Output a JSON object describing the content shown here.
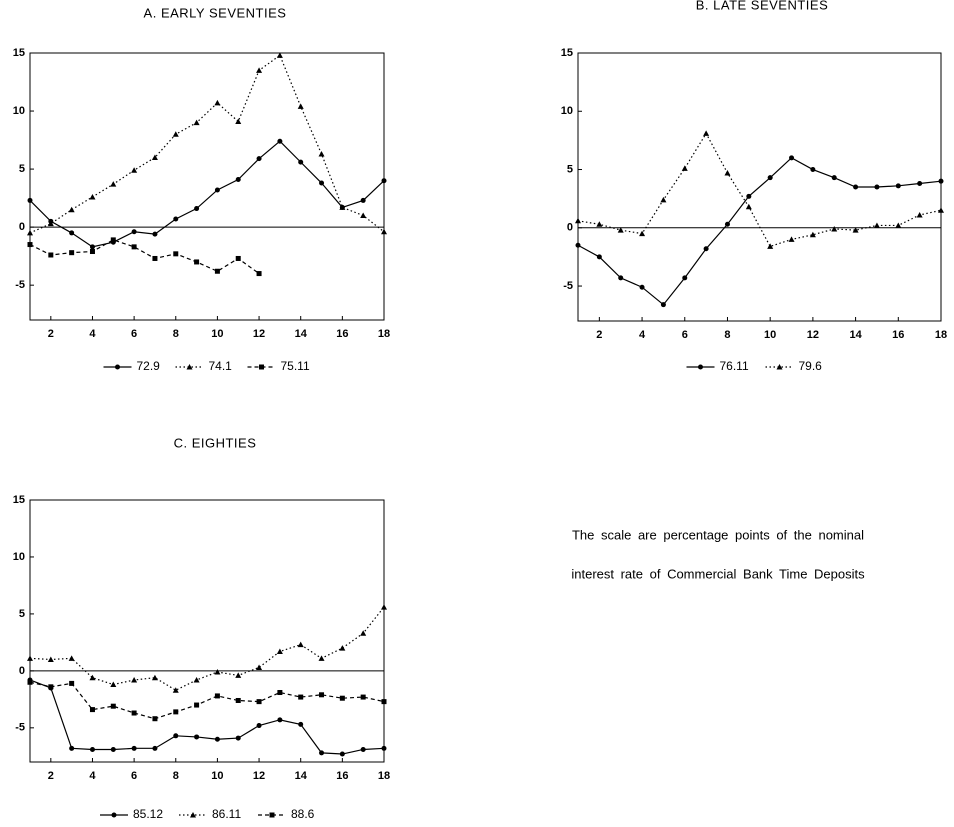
{
  "chart_data": [
    {
      "type": "line",
      "title": "A. EARLY SEVENTIES",
      "x": [
        1,
        2,
        3,
        4,
        5,
        6,
        7,
        8,
        9,
        10,
        11,
        12,
        13,
        14,
        15,
        16,
        17,
        18
      ],
      "xlim": [
        1,
        18
      ],
      "xticks": [
        2,
        4,
        6,
        8,
        10,
        12,
        14,
        16,
        18
      ],
      "ylim": [
        -8,
        15
      ],
      "yticks": [
        -5,
        0,
        5,
        10,
        15
      ],
      "hline": 0,
      "series": [
        {
          "name": "72.9",
          "color": "#000000",
          "style": "solid",
          "marker": "circle",
          "values": [
            2.3,
            0.5,
            -0.5,
            -1.7,
            -1.3,
            -0.4,
            -0.6,
            0.7,
            1.6,
            3.2,
            4.1,
            5.9,
            7.4,
            5.6,
            3.8,
            1.7,
            2.3,
            4.0
          ]
        },
        {
          "name": "74.1",
          "color": "#000000",
          "style": "dotted",
          "marker": "triangle",
          "values": [
            -0.5,
            0.3,
            1.5,
            2.6,
            3.7,
            4.9,
            6.0,
            8.0,
            9.0,
            10.7,
            9.1,
            13.5,
            14.8,
            10.4,
            6.3,
            1.7,
            1.0,
            -0.4
          ]
        },
        {
          "name": "75.11",
          "color": "#000000",
          "style": "dashed",
          "marker": "square",
          "values": [
            -1.5,
            -2.4,
            -2.2,
            -2.1,
            -1.1,
            -1.7,
            -2.7,
            -2.3,
            -3.0,
            -3.8,
            -2.7,
            -4.0,
            null,
            null,
            null,
            null,
            null,
            null
          ]
        }
      ]
    },
    {
      "type": "line",
      "title": "B. LATE SEVENTIES",
      "x": [
        1,
        2,
        3,
        4,
        5,
        6,
        7,
        8,
        9,
        10,
        11,
        12,
        13,
        14,
        15,
        16,
        17,
        18
      ],
      "xlim": [
        1,
        18
      ],
      "xticks": [
        2,
        4,
        6,
        8,
        10,
        12,
        14,
        16,
        18
      ],
      "ylim": [
        -8,
        15
      ],
      "yticks": [
        -5,
        0,
        5,
        10,
        15
      ],
      "hline": 0,
      "series": [
        {
          "name": "76.11",
          "color": "#000000",
          "style": "solid",
          "marker": "circle",
          "values": [
            -1.5,
            -2.5,
            -4.3,
            -5.1,
            -6.6,
            -4.3,
            -1.8,
            0.3,
            2.7,
            4.3,
            6.0,
            5.0,
            4.3,
            3.5,
            3.5,
            3.6,
            3.8,
            4.0
          ]
        },
        {
          "name": "79.6",
          "color": "#000000",
          "style": "dotted",
          "marker": "triangle",
          "values": [
            0.6,
            0.3,
            -0.2,
            -0.5,
            2.4,
            5.1,
            8.1,
            4.7,
            1.8,
            -1.6,
            -1.0,
            -0.6,
            -0.1,
            -0.2,
            0.2,
            0.2,
            1.1,
            1.5
          ]
        }
      ]
    },
    {
      "type": "line",
      "title": "C. EIGHTIES",
      "x": [
        1,
        2,
        3,
        4,
        5,
        6,
        7,
        8,
        9,
        10,
        11,
        12,
        13,
        14,
        15,
        16,
        17,
        18
      ],
      "xlim": [
        1,
        18
      ],
      "xticks": [
        2,
        4,
        6,
        8,
        10,
        12,
        14,
        16,
        18
      ],
      "ylim": [
        -8,
        15
      ],
      "yticks": [
        -5,
        0,
        5,
        10,
        15
      ],
      "hline": 0,
      "series": [
        {
          "name": "85.12",
          "color": "#000000",
          "style": "solid",
          "marker": "circle",
          "values": [
            -0.8,
            -1.5,
            -6.8,
            -6.9,
            -6.9,
            -6.8,
            -6.8,
            -5.7,
            -5.8,
            -6.0,
            -5.9,
            -4.8,
            -4.3,
            -4.7,
            -7.2,
            -7.3,
            -6.9,
            -6.8
          ]
        },
        {
          "name": "86.11",
          "color": "#000000",
          "style": "dotted",
          "marker": "triangle",
          "values": [
            1.1,
            1.0,
            1.1,
            -0.6,
            -1.2,
            -0.8,
            -0.6,
            -1.7,
            -0.8,
            -0.1,
            -0.4,
            0.3,
            1.7,
            2.3,
            1.1,
            2.0,
            3.3,
            5.6
          ]
        },
        {
          "name": "88.6",
          "color": "#000000",
          "style": "dashed",
          "marker": "square",
          "values": [
            -1.0,
            -1.4,
            -1.1,
            -3.4,
            -3.1,
            -3.7,
            -4.2,
            -3.6,
            -3.0,
            -2.2,
            -2.6,
            -2.7,
            -1.9,
            -2.3,
            -2.1,
            -2.4,
            -2.3,
            -2.7
          ]
        }
      ]
    }
  ],
  "note": {
    "lines": [
      "The scale are percentage points of the nominal",
      "interest rate of Commercial Bank Time Deposits"
    ]
  }
}
